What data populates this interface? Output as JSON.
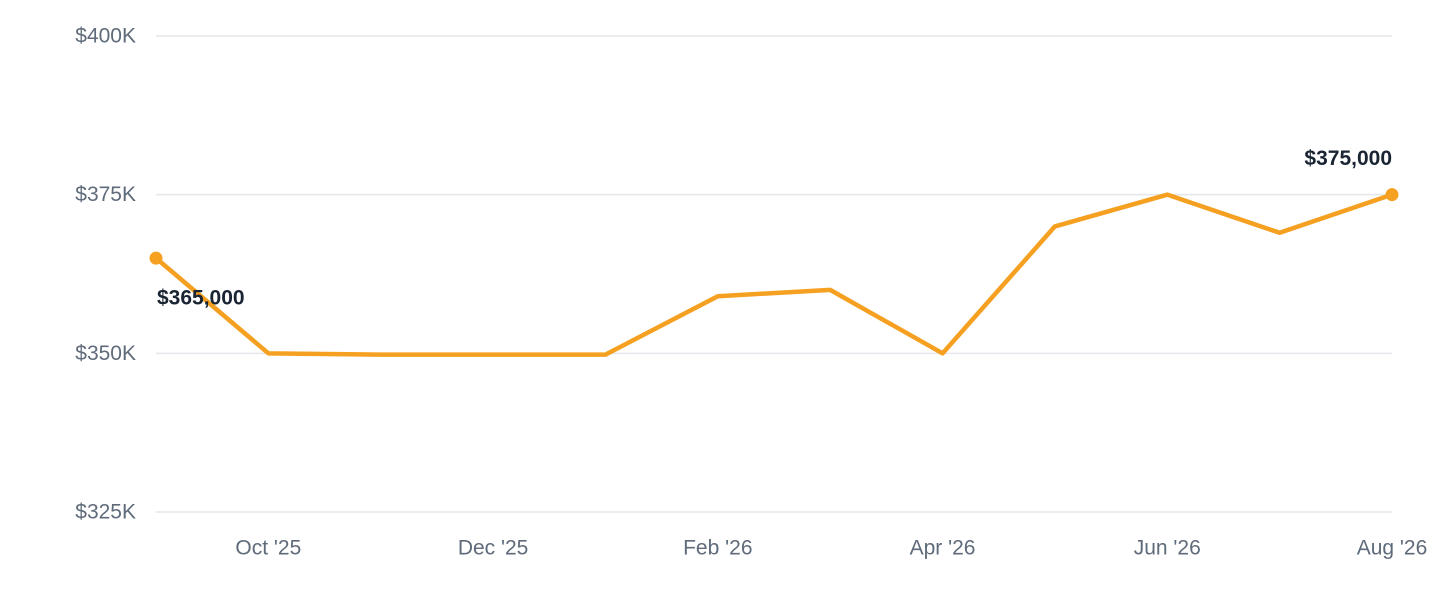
{
  "chart_data": {
    "type": "line",
    "title": "",
    "xlabel": "",
    "ylabel": "",
    "x": [
      "2025-09",
      "2025-10",
      "2025-11",
      "2025-12",
      "2026-01",
      "2026-02",
      "2026-03",
      "2026-04",
      "2026-05",
      "2026-06",
      "2026-07",
      "2026-08"
    ],
    "series": [
      {
        "values": [
          365000,
          350000,
          349800,
          349800,
          349800,
          359000,
          360000,
          350000,
          370000,
          375000,
          369000,
          375000
        ],
        "color": "#f5a020"
      }
    ],
    "ylim": [
      325000,
      400000
    ],
    "yticks": [
      400000,
      375000,
      350000,
      325000
    ],
    "ytick_labels": [
      "$400K",
      "$375K",
      "$350K",
      "$325K"
    ],
    "xtick_labels": [
      {
        "x": "2025-10",
        "label": "Oct '25"
      },
      {
        "x": "2025-12",
        "label": "Dec '25"
      },
      {
        "x": "2026-02",
        "label": "Feb '26"
      },
      {
        "x": "2026-04",
        "label": "Apr '26"
      },
      {
        "x": "2026-06",
        "label": "Jun '26"
      },
      {
        "x": "2026-08",
        "label": "Aug '26"
      }
    ],
    "annotations": [
      {
        "x": "2025-09",
        "value": 365000,
        "label": "$365,000"
      },
      {
        "x": "2026-08",
        "value": 375000,
        "label": "$375,000"
      }
    ],
    "grid": true,
    "legend": "none"
  }
}
